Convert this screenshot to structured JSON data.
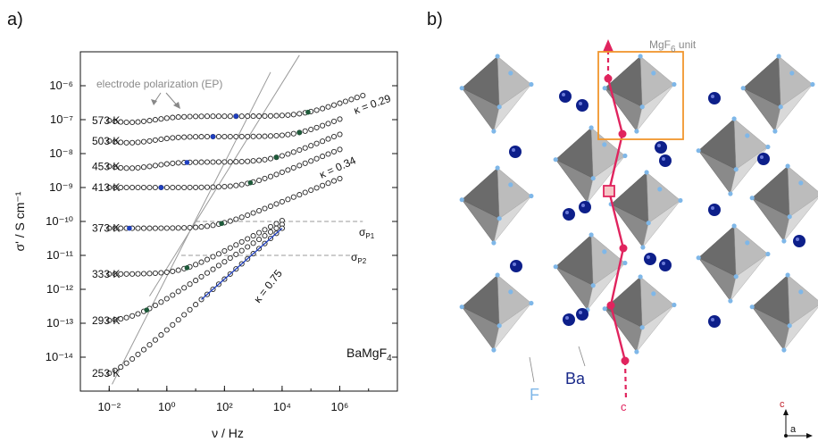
{
  "panel_a": {
    "label": "a)",
    "compound": "BaMgF",
    "compound_sub": "4",
    "ep_label": "electrode polarization (EP)",
    "sigma_p1": "σ",
    "sigma_p1_sub": "P1",
    "sigma_p2": "σ",
    "sigma_p2_sub": "P2",
    "kappa_labels": [
      "κ = 0.29",
      "κ = 0.34",
      "κ = 0.75"
    ]
  },
  "panel_b": {
    "label": "b)",
    "unit_label": "MgF",
    "unit_label_sub": "6",
    "unit_label_tail": " unit",
    "ba_label": "Ba",
    "f_label": "F",
    "c_axis_label": "c",
    "axes_c": "c",
    "axes_a": "a"
  },
  "colors": {
    "open_marker": "#222222",
    "blue_marker": "#1f3fbf",
    "green_marker": "#1e5a3a",
    "fit_line": "#1f3fbf",
    "guide_line": "#9a9a9a",
    "ba_atom": "#0d1f8a",
    "f_atom": "#7fb7e8",
    "chain": "#e0245e",
    "unit_box": "#f0962d"
  },
  "chart_data": {
    "type": "scatter",
    "xlabel": "ν / Hz",
    "ylabel": "σ' / S cm⁻¹",
    "x_scale": "log",
    "y_scale": "log",
    "xlim": [
      0.001,
      100000000
    ],
    "ylim": [
      1e-15,
      1e-05
    ],
    "x_ticks": [
      "10⁻²",
      "10⁰",
      "10²",
      "10⁴",
      "10⁶"
    ],
    "y_ticks": [
      "10⁻¹⁴",
      "10⁻¹³",
      "10⁻¹²",
      "10⁻¹¹",
      "10⁻¹⁰",
      "10⁻⁹",
      "10⁻⁸",
      "10⁻⁷",
      "10⁻⁶"
    ],
    "series": [
      {
        "name": "573 K",
        "log_sigma_dc": -6.9,
        "log_nu_onset": 4.7,
        "kappa": 0.29,
        "log_nu_max": 6.8,
        "ep": true,
        "blue_at": 2.4,
        "green_at": 4.9
      },
      {
        "name": "503 K",
        "log_sigma_dc": -7.5,
        "log_nu_onset": 4.5,
        "kappa": 0.34,
        "log_nu_max": 6.0,
        "ep": true,
        "blue_at": 1.6,
        "green_at": 4.6
      },
      {
        "name": "453 K",
        "log_sigma_dc": -8.25,
        "log_nu_onset": 3.6,
        "kappa": 0.34,
        "log_nu_max": 6.0,
        "ep": true,
        "blue_at": 0.7,
        "green_at": 3.8
      },
      {
        "name": "413 K",
        "log_sigma_dc": -9.0,
        "log_nu_onset": 2.7,
        "kappa": 0.34,
        "log_nu_max": 6.0,
        "ep": false,
        "blue_at": -0.2,
        "green_at": 2.9
      },
      {
        "name": "373 K",
        "log_sigma_dc": -10.2,
        "log_nu_onset": 1.7,
        "kappa": 0.34,
        "log_nu_max": 6.0,
        "ep": false,
        "blue_at": -1.3,
        "green_at": 1.9
      },
      {
        "name": "333 K",
        "log_sigma_dc": -11.55,
        "log_nu_onset": 0.5,
        "kappa": 0.45,
        "log_nu_max": 4.0,
        "ep": false,
        "green_at": 0.7
      },
      {
        "name": "293 K",
        "log_sigma_dc": -12.95,
        "log_nu_onset": -1.2,
        "kappa": 0.55,
        "log_nu_max": 4.0,
        "ep": false,
        "green_at": -0.7
      },
      {
        "name": "253 K",
        "log_sigma_dc": -14.7,
        "log_nu_onset": -2.0,
        "kappa": 0.75,
        "log_nu_max": 4.0,
        "ep": false
      }
    ],
    "sigma_p1": -10.0,
    "sigma_p2": -11.0
  }
}
